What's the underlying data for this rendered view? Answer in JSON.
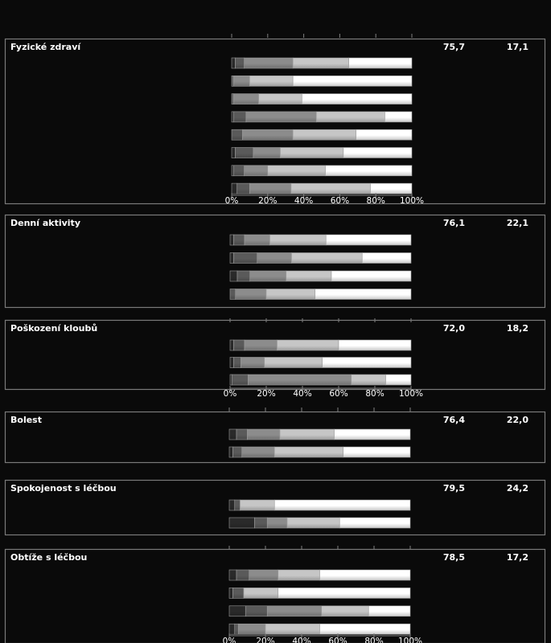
{
  "chart_data": {
    "type": "bar",
    "orientation": "horizontal",
    "stacked": true,
    "percent_scale": true,
    "xlim": [
      0,
      100
    ],
    "x_ticks": [
      "0%",
      "20%",
      "40%",
      "60%",
      "80%",
      "100%"
    ],
    "segment_colors": [
      "#2a2a2a",
      "#5a5a5a",
      "#8c8c8c",
      "#c6c6c6",
      "#ffffff"
    ],
    "panels": [
      {
        "title": "Fyzické zdraví",
        "stat1": "75,7",
        "stat2": "17,1",
        "show_axis": true,
        "bars": [
          [
            2,
            5,
            27,
            31,
            35
          ],
          [
            0,
            1,
            9,
            24,
            66
          ],
          [
            0,
            1,
            14,
            24,
            61
          ],
          [
            1,
            7,
            39,
            38,
            15
          ],
          [
            0,
            6,
            28,
            35,
            31
          ],
          [
            2,
            10,
            15,
            35,
            38
          ],
          [
            1,
            6,
            13,
            32,
            48
          ],
          [
            3,
            7,
            23,
            44,
            23
          ]
        ]
      },
      {
        "title": "Denní aktivity",
        "stat1": "76,1",
        "stat2": "22,1",
        "show_axis": false,
        "bars": [
          [
            2,
            6,
            14,
            31,
            47
          ],
          [
            2,
            13,
            19,
            39,
            27
          ],
          [
            4,
            7,
            20,
            25,
            44
          ],
          [
            0,
            3,
            17,
            27,
            53
          ]
        ]
      },
      {
        "title": "Poškození kloubů",
        "stat1": "72,0",
        "stat2": "18,2",
        "show_axis": true,
        "bars": [
          [
            2,
            6,
            18,
            34,
            40
          ],
          [
            2,
            4,
            13,
            32,
            49
          ],
          [
            1,
            9,
            57,
            19,
            14
          ]
        ]
      },
      {
        "title": "Bolest",
        "stat1": "76,4",
        "stat2": "22,0",
        "show_axis": false,
        "bars": [
          [
            4,
            6,
            18,
            30,
            42
          ],
          [
            2,
            5,
            18,
            38,
            37
          ]
        ]
      },
      {
        "title": "Spokojenost s léčbou",
        "stat1": "79,5",
        "stat2": "24,2",
        "show_axis": false,
        "bars": [
          [
            3,
            3,
            0,
            19,
            75
          ],
          [
            14,
            7,
            11,
            29,
            39
          ]
        ]
      },
      {
        "title": "Obtíže s léčbou",
        "stat1": "78,5",
        "stat2": "17,2",
        "show_axis": true,
        "bars": [
          [
            4,
            7,
            16,
            23,
            50
          ],
          [
            2,
            6,
            0,
            19,
            73
          ],
          [
            9,
            12,
            30,
            26,
            23
          ],
          [
            3,
            2,
            15,
            30,
            50
          ]
        ]
      }
    ]
  }
}
